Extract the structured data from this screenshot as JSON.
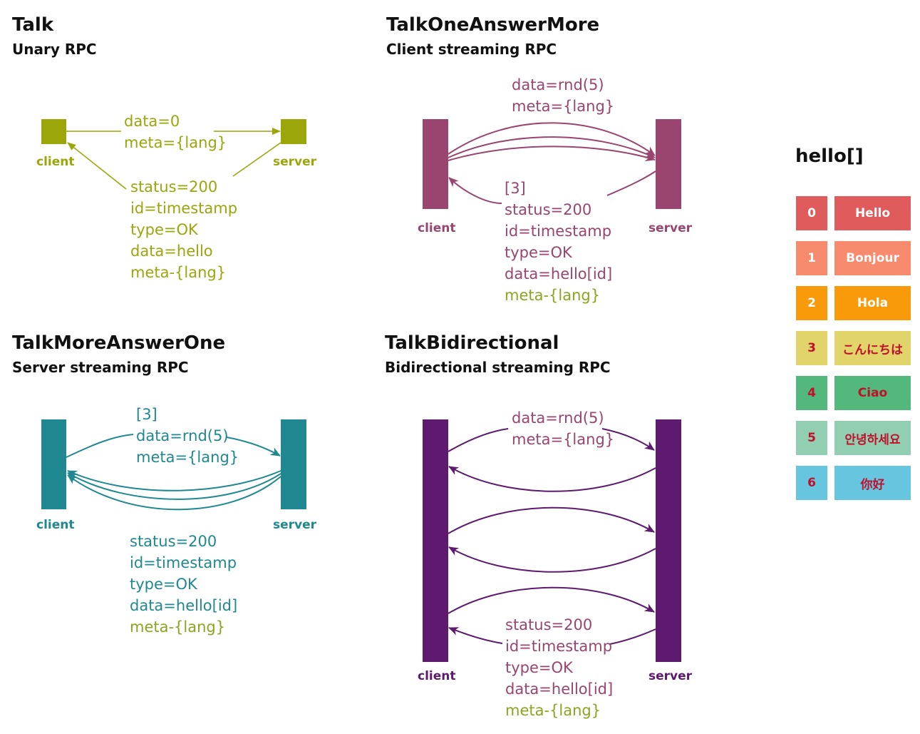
{
  "colors": {
    "talk": "#9aa60a",
    "one_answer_more": "#9a4470",
    "more_answer_one": "#1f8891",
    "bidirectional": "#5e1a6e",
    "meta_green": "#8aa620"
  },
  "sections": {
    "talk": {
      "title": "Talk",
      "subtitle": "Unary RPC",
      "client": "client",
      "server": "server",
      "request": [
        "data=0",
        "meta={lang}"
      ],
      "response": [
        "status=200",
        "id=timestamp",
        "type=OK",
        "data=hello",
        "meta-{lang}"
      ]
    },
    "one_answer_more": {
      "title": "TalkOneAnswerMore",
      "subtitle": "Client streaming RPC",
      "client": "client",
      "server": "server",
      "request": [
        "data=rnd(5)",
        "meta={lang}"
      ],
      "response": [
        "[3]",
        "status=200",
        "id=timestamp",
        "type=OK",
        "data=hello[id]",
        "meta-{lang}"
      ]
    },
    "more_answer_one": {
      "title": "TalkMoreAnswerOne",
      "subtitle": "Server streaming RPC",
      "client": "client",
      "server": "server",
      "request": [
        "[3]",
        "data=rnd(5)",
        "meta={lang}"
      ],
      "response": [
        "status=200",
        "id=timestamp",
        "type=OK",
        "data=hello[id]",
        "meta-{lang}"
      ]
    },
    "bidirectional": {
      "title": "TalkBidirectional",
      "subtitle": "Bidirectional streaming RPC",
      "client": "client",
      "server": "server",
      "request": [
        "data=rnd(5)",
        "meta={lang}"
      ],
      "response": [
        "status=200",
        "id=timestamp",
        "type=OK",
        "data=hello[id]",
        "meta-{lang}"
      ]
    }
  },
  "hello": {
    "title": "hello[]",
    "items": [
      {
        "index": "0",
        "text": "Hello",
        "bg": "#e05c5c",
        "fg": "#ffffff"
      },
      {
        "index": "1",
        "text": "Bonjour",
        "bg": "#f88a6e",
        "fg": "#ffffff"
      },
      {
        "index": "2",
        "text": "Hola",
        "bg": "#f89a0a",
        "fg": "#ffffff"
      },
      {
        "index": "3",
        "text": "こんにちは",
        "bg": "#e0d46a",
        "fg": "#c0102a"
      },
      {
        "index": "4",
        "text": "Ciao",
        "bg": "#52b87c",
        "fg": "#c0102a"
      },
      {
        "index": "5",
        "text": "안녕하세요",
        "bg": "#92ceb2",
        "fg": "#c0102a"
      },
      {
        "index": "6",
        "text": "你好",
        "bg": "#66c6e0",
        "fg": "#c0102a"
      }
    ]
  }
}
